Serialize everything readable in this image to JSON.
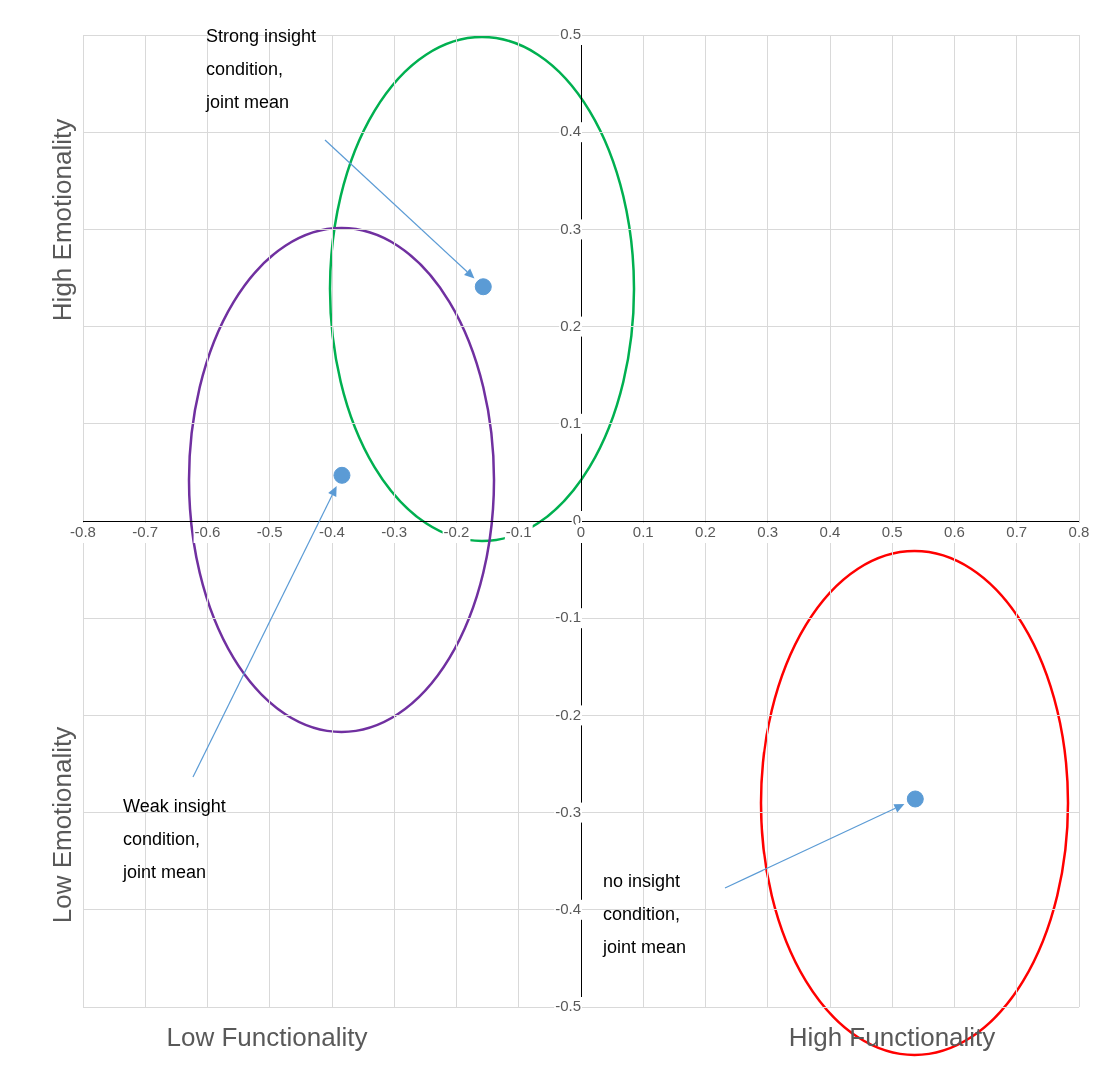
{
  "chart_data": {
    "type": "scatter",
    "x": [
      -0.157,
      -0.384,
      0.537
    ],
    "series": [
      {
        "color": "#5b9bd5",
        "values": [
          0.241,
          0.047,
          -0.286
        ]
      }
    ],
    "xlim": [
      -0.8,
      0.8
    ],
    "xticks": [
      -0.8,
      -0.7,
      -0.6,
      -0.5,
      -0.4,
      -0.3,
      -0.2,
      -0.1,
      0,
      0.1,
      0.2,
      0.3,
      0.4,
      0.5,
      0.6,
      0.7,
      0.8
    ],
    "ylim": [
      -0.5,
      0.5
    ],
    "yticks": [
      -0.5,
      -0.4,
      -0.3,
      -0.2,
      -0.1,
      0,
      0.1,
      0.2,
      0.3,
      0.4,
      0.5
    ],
    "grid": true,
    "marker": "circle",
    "annotations": [
      "Strong insight condition, joint mean",
      "Weak insight condition, joint mean",
      "no insight condition, joint mean",
      "High Emotionality",
      "Low Emotionality",
      "Low Functionality",
      "High Functionality"
    ]
  }
}
